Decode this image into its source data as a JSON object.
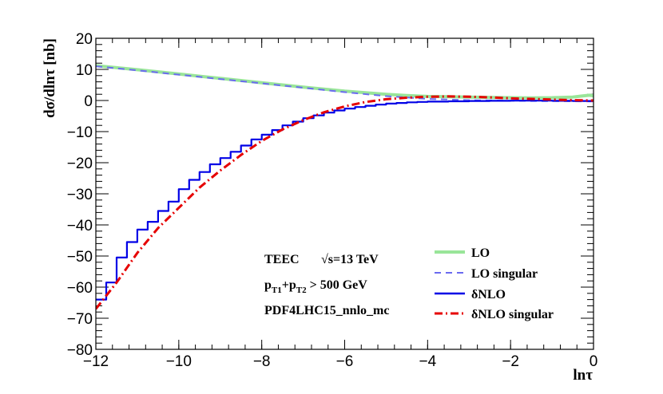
{
  "chart_data": {
    "type": "line",
    "title": "",
    "xlabel": "lnτ",
    "ylabel": "dσ/dlnτ  [nb]",
    "xlim": [
      -12,
      0
    ],
    "ylim": [
      -80,
      20
    ],
    "x_ticks": [
      -12,
      -10,
      -8,
      -6,
      -4,
      -2,
      0
    ],
    "x_tick_labels": [
      "−12",
      "−10",
      "−8",
      "−6",
      "−4",
      "−2",
      "0"
    ],
    "y_ticks": [
      20,
      10,
      0,
      -10,
      -20,
      -30,
      -40,
      -50,
      -60,
      -70,
      -80
    ],
    "y_tick_labels": [
      "20",
      "10",
      "0",
      "−10",
      "−20",
      "−30",
      "−40",
      "−50",
      "−60",
      "−70",
      "−80"
    ],
    "annotations": {
      "process": "TEEC",
      "energy": "√s=13 TeV",
      "cut_p": "p",
      "cut_sub1": "T1",
      "cut_plus": "+p",
      "cut_sub2": "T2",
      "cut_rest": " > 500 GeV",
      "pdf": "PDF4LHC15_nnlo_mc"
    },
    "legend": {
      "position": "bottom-right",
      "entries": [
        "LO",
        "LO singular",
        "δNLO",
        "δNLO singular"
      ]
    },
    "colors": {
      "lo": "#99e599",
      "lo_singular": "#6a6af0",
      "dnlo": "#0000e6",
      "dnlo_singular": "#e60000"
    },
    "series": [
      {
        "name": "LO",
        "style": "solid",
        "x": [
          -12,
          -11,
          -10,
          -9,
          -8,
          -7,
          -6,
          -5,
          -4.5,
          -4,
          -3.5,
          -3,
          -2.5,
          -2,
          -1.5,
          -1,
          -0.5,
          -0.3,
          -0.1,
          0
        ],
        "y": [
          11.2,
          9.9,
          8.5,
          7.1,
          5.7,
          4.3,
          3.0,
          2.0,
          1.6,
          1.3,
          1.2,
          1.1,
          1.0,
          0.9,
          0.85,
          0.9,
          1.1,
          1.4,
          1.7,
          1.5
        ]
      },
      {
        "name": "LO singular",
        "style": "dashed",
        "x": [
          -12,
          -11,
          -10,
          -9,
          -8,
          -7,
          -6,
          -5,
          -4,
          -3,
          -2,
          -1,
          0
        ],
        "y": [
          11.0,
          9.7,
          8.3,
          6.9,
          5.5,
          4.1,
          2.7,
          1.4,
          0.5,
          0.1,
          -0.1,
          -0.2,
          -0.3
        ]
      },
      {
        "name": "δNLO",
        "style": "step",
        "edges": [
          -12,
          -11.75,
          -11.5,
          -11.25,
          -11,
          -10.75,
          -10.5,
          -10.25,
          -10,
          -9.75,
          -9.5,
          -9.25,
          -9,
          -8.75,
          -8.5,
          -8.25,
          -8,
          -7.75,
          -7.5,
          -7.25,
          -7,
          -6.75,
          -6.5,
          -6.25,
          -6,
          -5.75,
          -5.5,
          -5.25,
          -5,
          -4.75,
          -4.5,
          -4.25,
          -4,
          -3.5,
          -3,
          -2.5,
          -2,
          -1.5,
          -1,
          -0.5,
          0
        ],
        "values": [
          -64,
          -58.5,
          -50.5,
          -45.5,
          -41.5,
          -39,
          -35.5,
          -32.5,
          -28.5,
          -25.5,
          -23,
          -20.5,
          -18.5,
          -16.5,
          -14.5,
          -12.5,
          -11,
          -9.5,
          -8,
          -6.8,
          -5.7,
          -4.8,
          -3.9,
          -3.2,
          -2.6,
          -2.1,
          -1.7,
          -1.3,
          -1.0,
          -0.8,
          -0.6,
          -0.45,
          -0.35,
          -0.25,
          -0.15,
          -0.1,
          -0.05,
          -0.05,
          -0.1,
          -0.15
        ]
      },
      {
        "name": "δNLO singular",
        "style": "dashdot",
        "x": [
          -12,
          -11.5,
          -11,
          -10.5,
          -10,
          -9.5,
          -9,
          -8.5,
          -8,
          -7.5,
          -7,
          -6.5,
          -6,
          -5.5,
          -5,
          -4.5,
          -4,
          -3.5,
          -3,
          -2.5,
          -2,
          -1.5,
          -1,
          -0.5,
          0
        ],
        "y": [
          -67,
          -58.5,
          -49,
          -41,
          -34.5,
          -28,
          -22.5,
          -17.5,
          -13,
          -9.3,
          -6.3,
          -3.8,
          -1.9,
          -0.5,
          0.4,
          0.9,
          1.2,
          1.3,
          1.2,
          1.0,
          0.7,
          0.5,
          0.3,
          0.1,
          0.0
        ]
      }
    ]
  }
}
